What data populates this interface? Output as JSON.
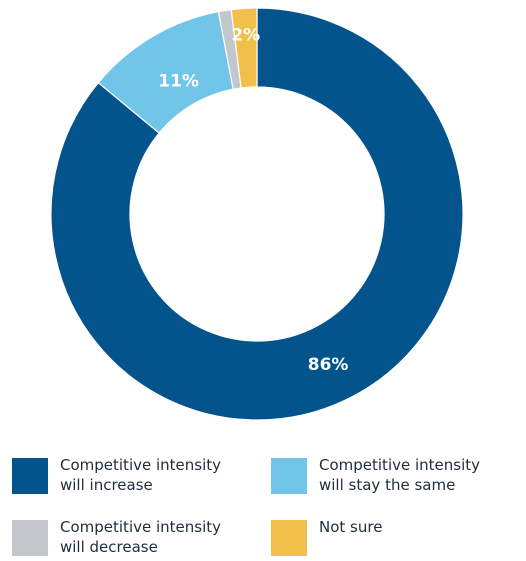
{
  "chart_data": {
    "type": "pie",
    "subtype": "donut",
    "categories": [
      "Competitive intensity\nwill increase",
      "Competitive intensity\nwill stay the same",
      "Competitive intensity\nwill decrease",
      "Not sure"
    ],
    "values": [
      86,
      11,
      1,
      2
    ],
    "unit": "%",
    "data_labels": [
      "86%",
      "11%",
      "",
      "2%"
    ],
    "colors": [
      "#03538c",
      "#71c5e8",
      "#c3c7cb",
      "#f1c04b"
    ],
    "legend_position": "bottom"
  }
}
